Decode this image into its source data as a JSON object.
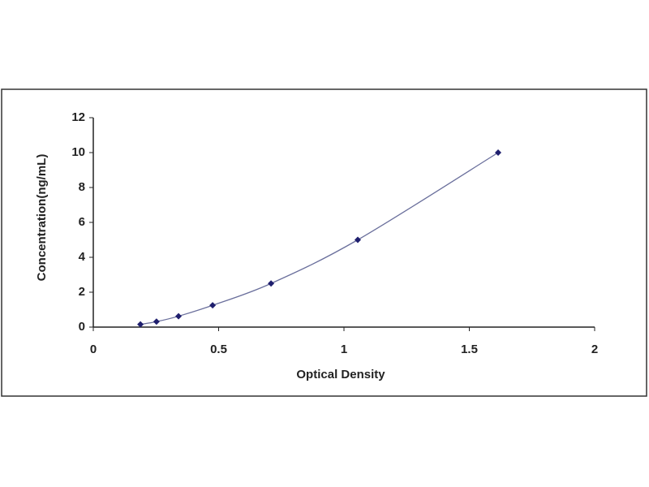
{
  "chart_data": {
    "type": "scatter",
    "xlabel": "Optical Density",
    "ylabel": "Concentration(ng/mL)",
    "x": [
      0.188,
      0.252,
      0.34,
      0.476,
      0.709,
      1.055,
      1.615
    ],
    "values": [
      0.156,
      0.312,
      0.625,
      1.25,
      2.5,
      5,
      10
    ],
    "color": "#1f1f6e",
    "line": true,
    "line_color": "#6a6f9c",
    "xlim": [
      0,
      2
    ],
    "xticks": [
      0,
      0.5,
      1,
      1.5,
      2
    ],
    "ylim": [
      0,
      12
    ],
    "yticks": [
      0,
      2,
      4,
      6,
      8,
      10,
      12
    ],
    "grid": false
  }
}
